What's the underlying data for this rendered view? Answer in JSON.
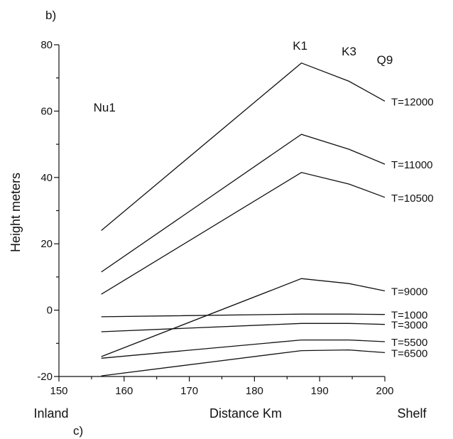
{
  "chart_data": {
    "type": "line",
    "panel_label": "b)",
    "panel_label_below": "c)",
    "xlabel": "Distance Km",
    "ylabel": "Height meters",
    "xlim": [
      150,
      200
    ],
    "ylim": [
      -20,
      80
    ],
    "x_ticks": [
      150,
      160,
      170,
      180,
      190,
      200
    ],
    "y_ticks": [
      -20,
      0,
      20,
      40,
      60,
      80
    ],
    "x_edge_labels": {
      "left": "Inland",
      "right": "Shelf"
    },
    "grid": false,
    "locations": [
      {
        "name": "Nu1",
        "x": 157
      },
      {
        "name": "K1",
        "x": 187
      },
      {
        "name": "K3",
        "x": 194.5
      },
      {
        "name": "Q9",
        "x": 200
      }
    ],
    "series": [
      {
        "name": "T=12000",
        "x": [
          156.5,
          187.2,
          194.5,
          200
        ],
        "y": [
          24,
          74.5,
          69,
          63
        ]
      },
      {
        "name": "T=11000",
        "x": [
          156.5,
          187.2,
          194.5,
          200
        ],
        "y": [
          11.5,
          53,
          48.5,
          44
        ]
      },
      {
        "name": "T=10500",
        "x": [
          156.5,
          187.2,
          194.5,
          200
        ],
        "y": [
          4.8,
          41.5,
          38,
          34
        ]
      },
      {
        "name": "T=9000",
        "x": [
          156.5,
          187.2,
          194.5,
          200
        ],
        "y": [
          -14,
          9.5,
          8,
          5.8
        ]
      },
      {
        "name": "T=1000",
        "x": [
          156.5,
          187.2,
          194.5,
          200
        ],
        "y": [
          -2,
          -1.2,
          -1.2,
          -1.3
        ]
      },
      {
        "name": "T=3000",
        "x": [
          156.5,
          187.2,
          194.5,
          200
        ],
        "y": [
          -6.5,
          -4,
          -4,
          -4.3
        ]
      },
      {
        "name": "T=5500",
        "x": [
          156.5,
          187.2,
          194.5,
          200
        ],
        "y": [
          -14.5,
          -9,
          -9,
          -9.5
        ]
      },
      {
        "name": "T=6500",
        "x": [
          156.5,
          187.2,
          194.5,
          200
        ],
        "y": [
          -19.8,
          -12.2,
          -12,
          -12.8
        ]
      }
    ]
  }
}
